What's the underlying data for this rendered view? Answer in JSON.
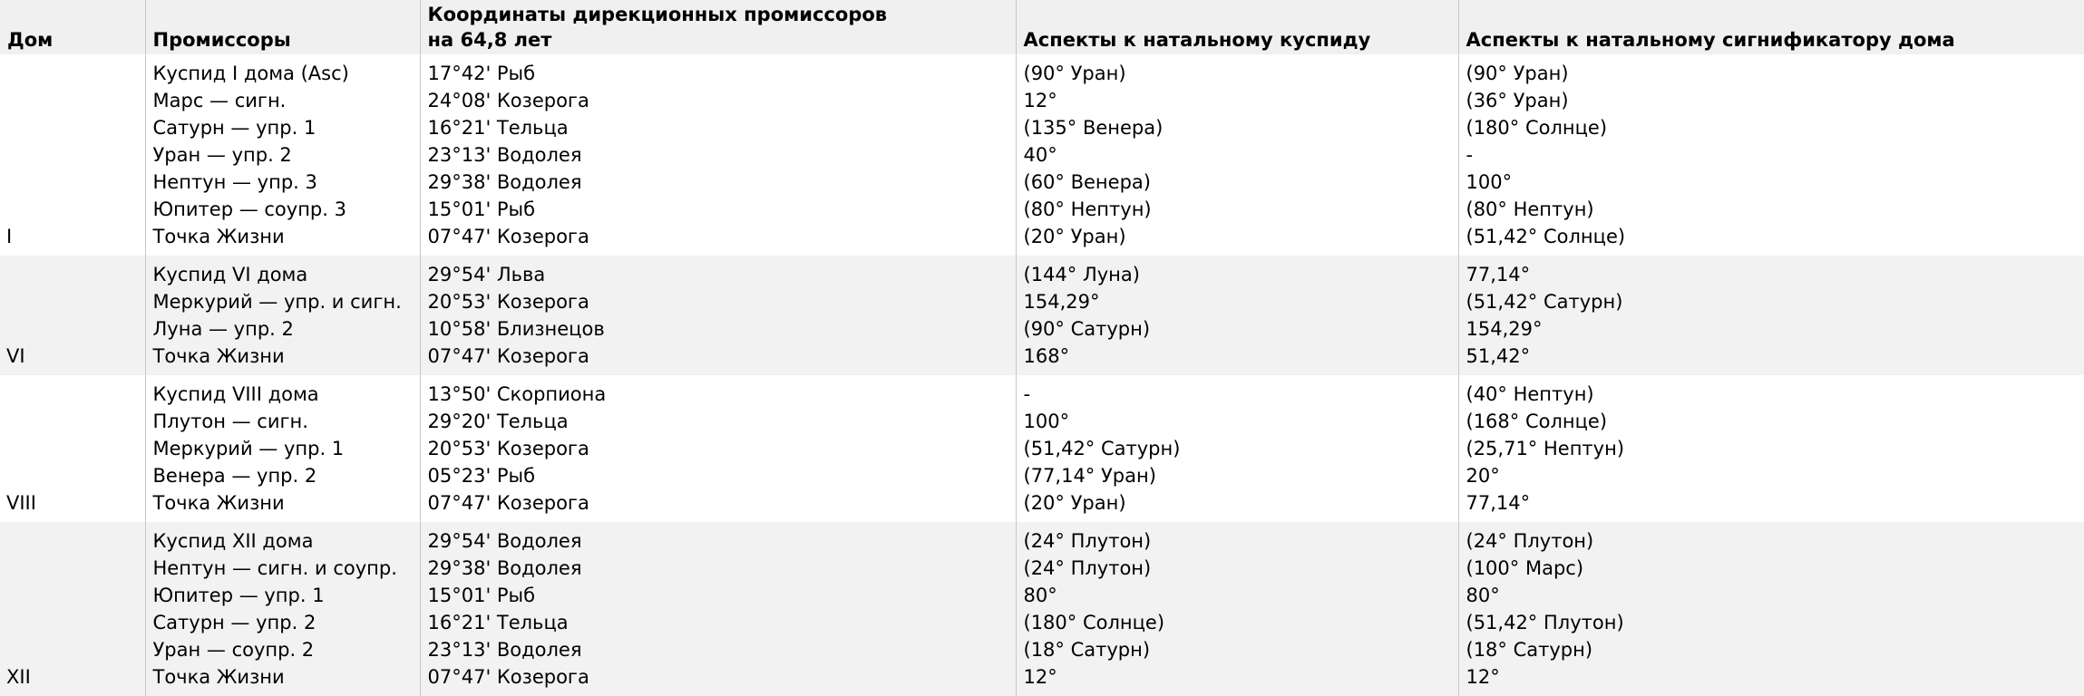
{
  "table": {
    "header": {
      "house": "Дом",
      "promissors": "Промиссоры",
      "coordinates_line1": "Координаты дирекционных промиссоров",
      "coordinates_line2": "на 64,8 лет",
      "aspects_cusp": "Аспекты к натальному куспиду",
      "aspects_significator": "Аспекты к натальному сигнификатору дома"
    },
    "groups": [
      {
        "house": "I",
        "rows": [
          [
            "Куспид I дома (Asc)",
            "17°42' Рыб",
            "(90° Уран)",
            "(90° Уран)"
          ],
          [
            "Марс — сигн.",
            "24°08' Козерога",
            "12°",
            "(36° Уран)"
          ],
          [
            "Сатурн — упр. 1",
            "16°21' Тельца",
            "(135° Венера)",
            "(180° Солнце)"
          ],
          [
            "Уран — упр. 2",
            "23°13' Водолея",
            "40°",
            "-"
          ],
          [
            "Нептун — упр. 3",
            "29°38' Водолея",
            "(60° Венера)",
            "100°"
          ],
          [
            "Юпитер — соупр. 3",
            "15°01' Рыб",
            "(80° Нептун)",
            "(80° Нептун)"
          ],
          [
            "Точка Жизни",
            "07°47' Козерога",
            "(20° Уран)",
            "(51,42° Солнце)"
          ]
        ]
      },
      {
        "house": "VI",
        "rows": [
          [
            "Куспид VI дома",
            "29°54' Льва",
            "(144° Луна)",
            "77,14°"
          ],
          [
            "Меркурий — упр. и сигн.",
            "20°53' Козерога",
            "154,29°",
            "(51,42° Сатурн)"
          ],
          [
            "Луна — упр. 2",
            "10°58' Близнецов",
            "(90° Сатурн)",
            "154,29°"
          ],
          [
            "Точка Жизни",
            "07°47' Козерога",
            "168°",
            "51,42°"
          ]
        ]
      },
      {
        "house": "VIII",
        "rows": [
          [
            "Куспид VIII дома",
            "13°50' Скорпиона",
            "-",
            "(40° Нептун)"
          ],
          [
            "Плутон — сигн.",
            "29°20' Тельца",
            "100°",
            "(168° Солнце)"
          ],
          [
            "Меркурий — упр. 1",
            "20°53' Козерога",
            "(51,42° Сатурн)",
            "(25,71° Нептун)"
          ],
          [
            "Венера — упр. 2",
            "05°23' Рыб",
            "(77,14° Уран)",
            "20°"
          ],
          [
            "Точка Жизни",
            "07°47' Козерога",
            "(20° Уран)",
            "77,14°"
          ]
        ]
      },
      {
        "house": "XII",
        "rows": [
          [
            "Куспид XII дома",
            "29°54' Водолея",
            "(24° Плутон)",
            "(24° Плутон)"
          ],
          [
            "Нептун — сигн. и соупр.",
            "29°38' Водолея",
            "(24° Плутон)",
            "(100° Марс)"
          ],
          [
            "Юпитер — упр. 1",
            "15°01' Рыб",
            "80°",
            "80°"
          ],
          [
            "Сатурн — упр. 2",
            "16°21' Тельца",
            "(180° Солнце)",
            "(51,42° Плутон)"
          ],
          [
            "Уран — соупр. 2",
            "23°13' Водолея",
            "(18° Сатурн)",
            "(18° Сатурн)"
          ],
          [
            "Точка Жизни",
            "07°47' Козерога",
            "12°",
            "12°"
          ]
        ]
      }
    ]
  },
  "colors": {
    "background": "#ffffff",
    "stripe": "#f2f2f2",
    "header_bg": "#f0f0f0",
    "border": "#c8c8c8",
    "text": "#000000"
  }
}
